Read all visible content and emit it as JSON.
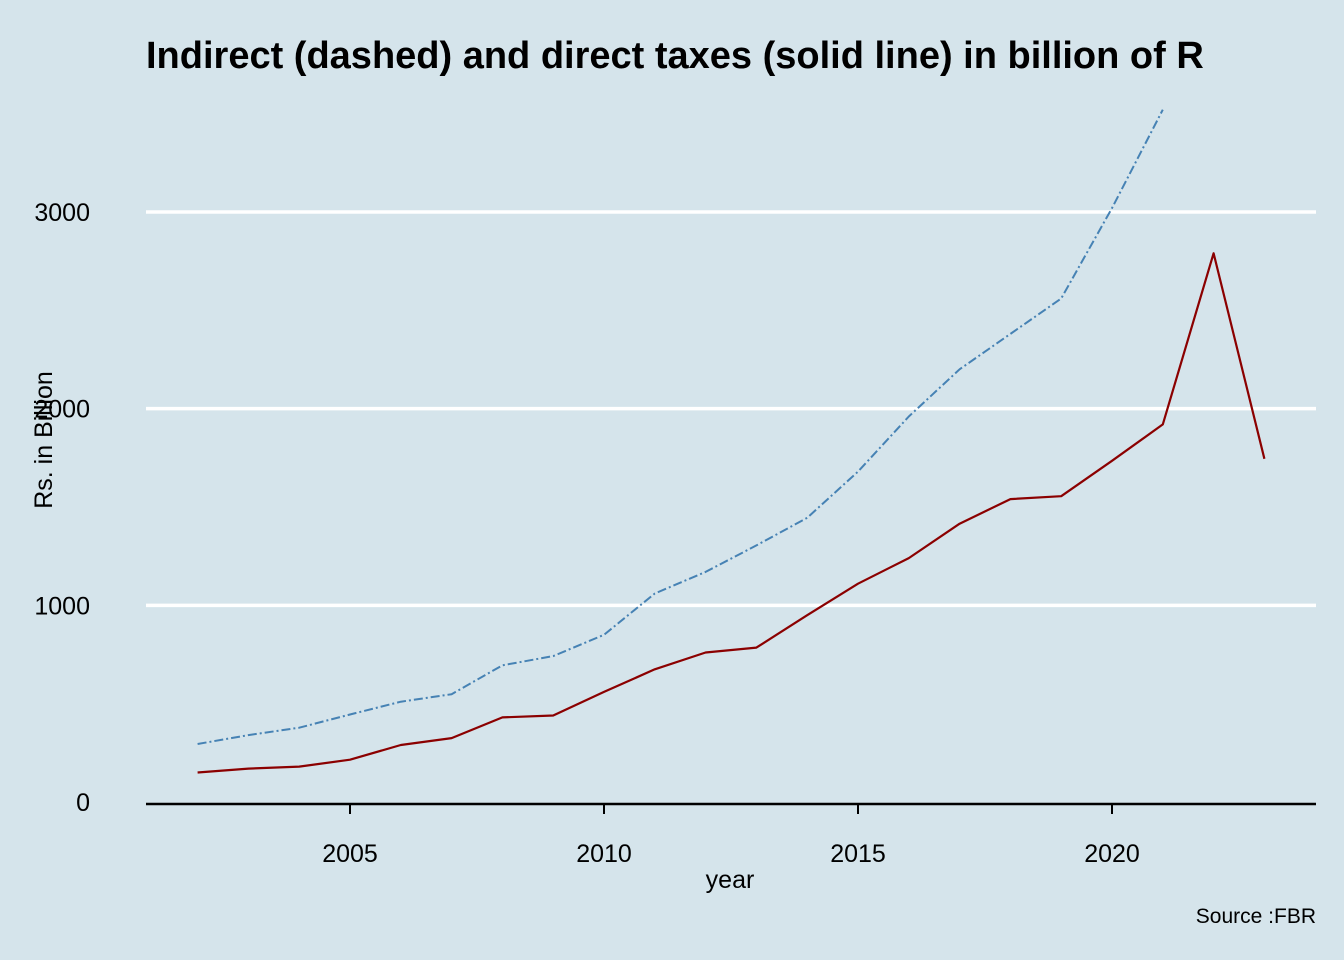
{
  "chart_data": {
    "type": "line",
    "title": "Indirect (dashed) and direct taxes (solid line) in billion of R",
    "xlabel": "year",
    "ylabel": "Rs. in Billion",
    "caption": "Source :FBR",
    "xlim": [
      2001,
      2024
    ],
    "ylim": [
      0,
      3550
    ],
    "x_ticks": [
      2005,
      2010,
      2015,
      2020
    ],
    "y_ticks": [
      0,
      1000,
      2000,
      3000
    ],
    "grid": "horizontal major lines only",
    "legend": "none",
    "background_color": "#d5e4eb",
    "series": [
      {
        "line_style": "dashed",
        "color": "#4682b4",
        "x": [
          2002,
          2003,
          2004,
          2005,
          2006,
          2007,
          2008,
          2009,
          2010,
          2011,
          2012,
          2013,
          2014,
          2015,
          2016,
          2017,
          2018,
          2019,
          2020,
          2021
        ],
        "values": [
          295,
          340,
          378,
          445,
          510,
          548,
          695,
          742,
          850,
          1060,
          1170,
          1305,
          1445,
          1680,
          1960,
          2200,
          2380,
          2560,
          3020,
          3520
        ]
      },
      {
        "line_style": "solid",
        "color": "#8b0000",
        "x": [
          2002,
          2003,
          2004,
          2005,
          2006,
          2007,
          2008,
          2009,
          2010,
          2011,
          2012,
          2013,
          2014,
          2015,
          2016,
          2017,
          2018,
          2019,
          2020,
          2021,
          2022,
          2023
        ],
        "values": [
          150,
          170,
          180,
          215,
          290,
          325,
          430,
          440,
          560,
          675,
          760,
          785,
          950,
          1110,
          1240,
          1415,
          1540,
          1555,
          1735,
          1920,
          2790,
          1745
        ]
      }
    ]
  }
}
